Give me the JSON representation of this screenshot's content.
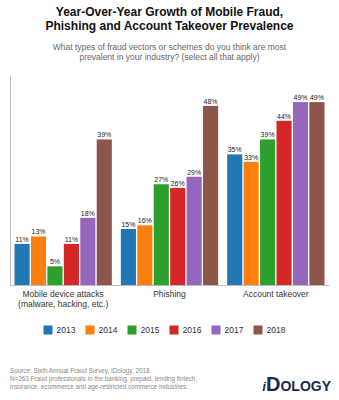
{
  "chart_data": {
    "type": "bar",
    "title": "Year-Over-Year Growth of Mobile Fraud,\nPhishing and Account Takeover Prevalence",
    "subtitle": "What types of fraud vectors or schemes do you think are most\nprevalent in your industry? (select all that apply)",
    "categories": [
      "Mobile device attacks\n(malware, hacking, etc.)",
      "Phishing",
      "Account takeover"
    ],
    "series": [
      {
        "name": "2013",
        "values": [
          11,
          15,
          35
        ],
        "value_labels": [
          "11%",
          "15%",
          "35%"
        ]
      },
      {
        "name": "2014",
        "values": [
          13,
          16,
          33
        ],
        "value_labels": [
          "13%",
          "16%",
          "33%"
        ]
      },
      {
        "name": "2015",
        "values": [
          5,
          27,
          39
        ],
        "value_labels": [
          "5%",
          "27%",
          "39%"
        ]
      },
      {
        "name": "2016",
        "values": [
          11,
          26,
          44
        ],
        "value_labels": [
          "11%",
          "26%",
          "44%"
        ]
      },
      {
        "name": "2017",
        "values": [
          18,
          29,
          49
        ],
        "value_labels": [
          "18%",
          "29%",
          "49%"
        ]
      },
      {
        "name": "2018",
        "values": [
          39,
          48,
          49
        ],
        "value_labels": [
          "39%",
          "48%",
          "49%"
        ]
      }
    ],
    "ylim": [
      0,
      56
    ],
    "data_labels": true,
    "tick_labels": "x",
    "legend": "bottom",
    "source": "Source:  Sixth Annual Fraud Survey, IDology, 2018\nN=263 Fraud professionals in the banking, prepaid, lending fintech,\ninsurance, ecommerce and age-restricted commerce industries.",
    "annotations": [
      "i",
      "D",
      "OLOGY"
    ]
  }
}
